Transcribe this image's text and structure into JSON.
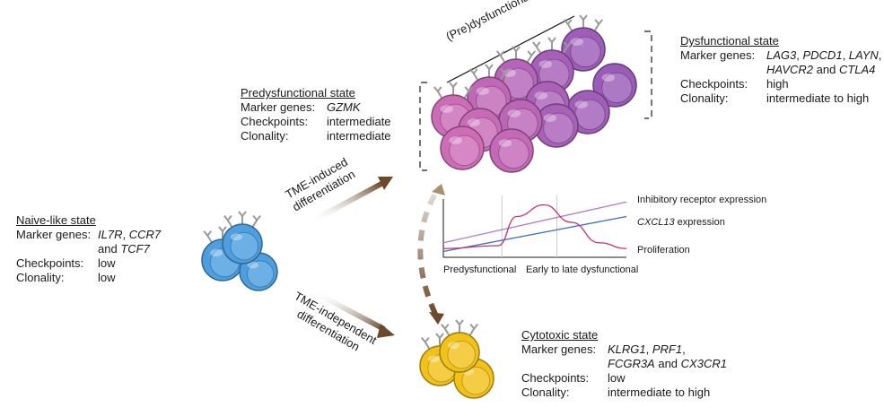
{
  "naive": {
    "title": "Naive-like state",
    "marker_key": "Marker genes:",
    "marker_g1": "IL7R",
    "marker_sep1": ", ",
    "marker_g2": "CCR7",
    "marker_and": "and ",
    "marker_g3": "TCF7",
    "checkpoints_key": "Checkpoints:",
    "checkpoints_val": "low",
    "clonality_key": "Clonality:",
    "clonality_val": "low"
  },
  "predys": {
    "title": "Predysfunctional state",
    "marker_key": "Marker genes:",
    "marker_val": "GZMK",
    "checkpoints_key": "Checkpoints:",
    "checkpoints_val": "intermediate",
    "clonality_key": "Clonality:",
    "clonality_val": "intermediate"
  },
  "dys": {
    "title": "Dysfunctional state",
    "marker_key": "Marker genes:",
    "m1": "LAG3",
    "m2": "PDCD1",
    "m3": "LAYN",
    "m4": "HAVCR2",
    "m_and": " and ",
    "m5": "CTLA4",
    "checkpoints_key": "Checkpoints:",
    "checkpoints_val": "high",
    "clonality_key": "Clonality:",
    "clonality_val": "intermediate to high"
  },
  "cyto": {
    "title": "Cytotoxic state",
    "marker_key": "Marker genes:",
    "m1": "KLRG1",
    "m2": "PRF1",
    "m3": "FCGR3A",
    "m_and": " and ",
    "m4": "CX3CR1",
    "checkpoints_key": "Checkpoints:",
    "checkpoints_val": "low",
    "clonality_key": "Clonality:",
    "clonality_val": "intermediate to high"
  },
  "arrows": {
    "tme_induced_1": "TME-induced",
    "tme_induced_2": "differentiation",
    "tme_independent_1": "TME-independent",
    "tme_independent_2": "differentiation"
  },
  "axis_label": "(Pre)dysfunctional axis",
  "chart_data": {
    "type": "line",
    "x_categories": [
      "Predysfunctional",
      "Early to late dysfunctional"
    ],
    "series": [
      {
        "name": "Inhibitory receptor expression",
        "name_italic_part": "",
        "color": "#b07cc6",
        "values": [
          [
            0,
            0.25
          ],
          [
            1,
            0.95
          ]
        ]
      },
      {
        "name": " expression",
        "name_italic_part": "CXCL13",
        "color": "#3a6fc4",
        "values": [
          [
            0,
            0.1
          ],
          [
            1,
            0.7
          ]
        ]
      },
      {
        "name": "Proliferation",
        "name_italic_part": "",
        "color": "#c8336b",
        "values": [
          [
            0,
            0.15
          ],
          [
            0.3,
            0.2
          ],
          [
            0.4,
            0.7
          ],
          [
            0.55,
            0.9
          ],
          [
            0.7,
            0.6
          ],
          [
            0.85,
            0.25
          ],
          [
            1,
            0.15
          ]
        ]
      }
    ],
    "vlines": [
      0.32,
      0.62
    ],
    "colors": {
      "inhibitory": "#b07cc6",
      "cxcl13": "#3a6fc4",
      "proliferation": "#c8336b"
    }
  },
  "colors": {
    "naive_cell": "#4d9fe0",
    "cyto_cell": "#f2c21b",
    "predys_cell": "#d46fb7",
    "dys_cell": "#9a5cb8",
    "arrow_brown": "#6b4a2b"
  }
}
